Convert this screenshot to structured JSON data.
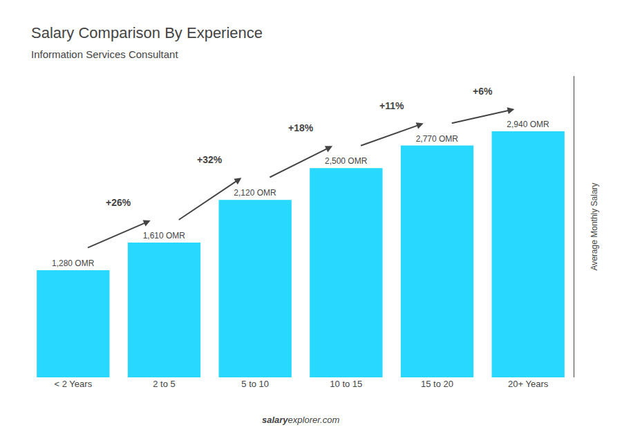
{
  "chart_data": {
    "type": "bar",
    "title": "Salary Comparison By Experience",
    "subtitle": "Information Services Consultant",
    "ylabel": "Average Monthly Salary",
    "categories": [
      "< 2 Years",
      "2 to 5",
      "5 to 10",
      "10 to 15",
      "15 to 20",
      "20+ Years"
    ],
    "values": [
      1280,
      1610,
      2120,
      2500,
      2770,
      2940
    ],
    "value_labels": [
      "1,280 OMR",
      "1,610 OMR",
      "2,120 OMR",
      "2,500 OMR",
      "2,770 OMR",
      "2,940 OMR"
    ],
    "data_labels": true,
    "annotations": [
      "+26%",
      "+32%",
      "+18%",
      "+11%",
      "+6%"
    ],
    "watermark": [
      "salary",
      "explorer.com"
    ],
    "color": "#29d8ff",
    "ylim": [
      0,
      3600
    ],
    "yticks": [],
    "tick_labels": "x",
    "grid": false
  }
}
